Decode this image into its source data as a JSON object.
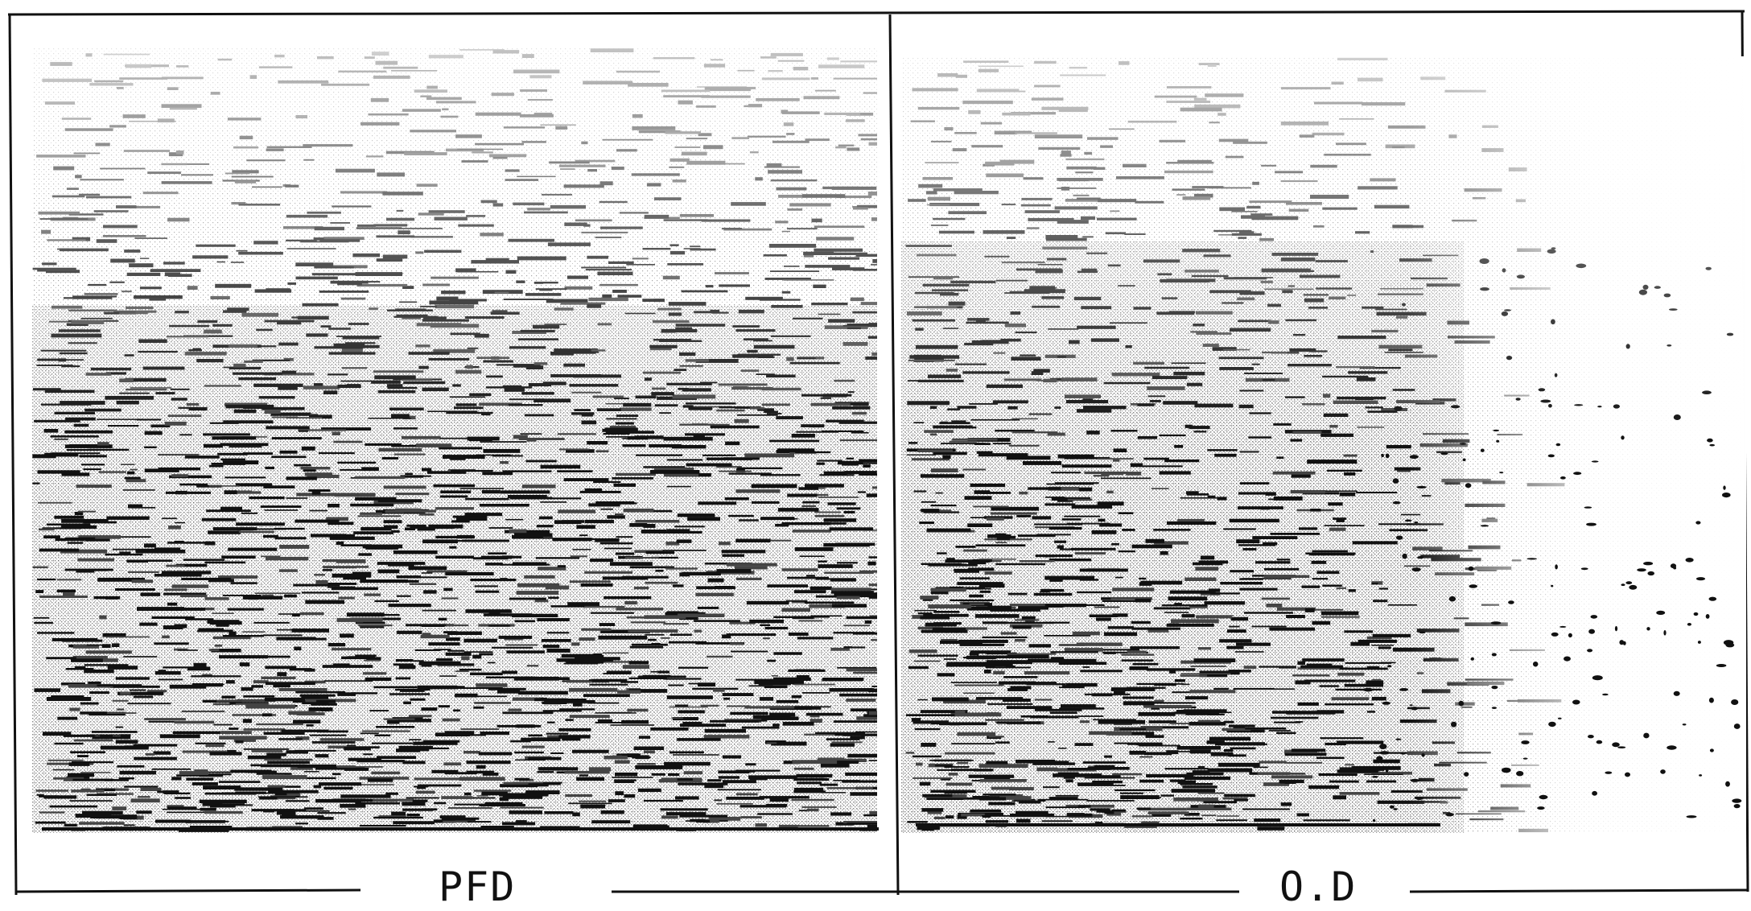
{
  "panels": [
    {
      "label": "PFD"
    },
    {
      "label": "O.D"
    }
  ],
  "colors": {
    "ink": "#111111",
    "paper": "#ffffff",
    "halftone": "#8a8a8a"
  }
}
